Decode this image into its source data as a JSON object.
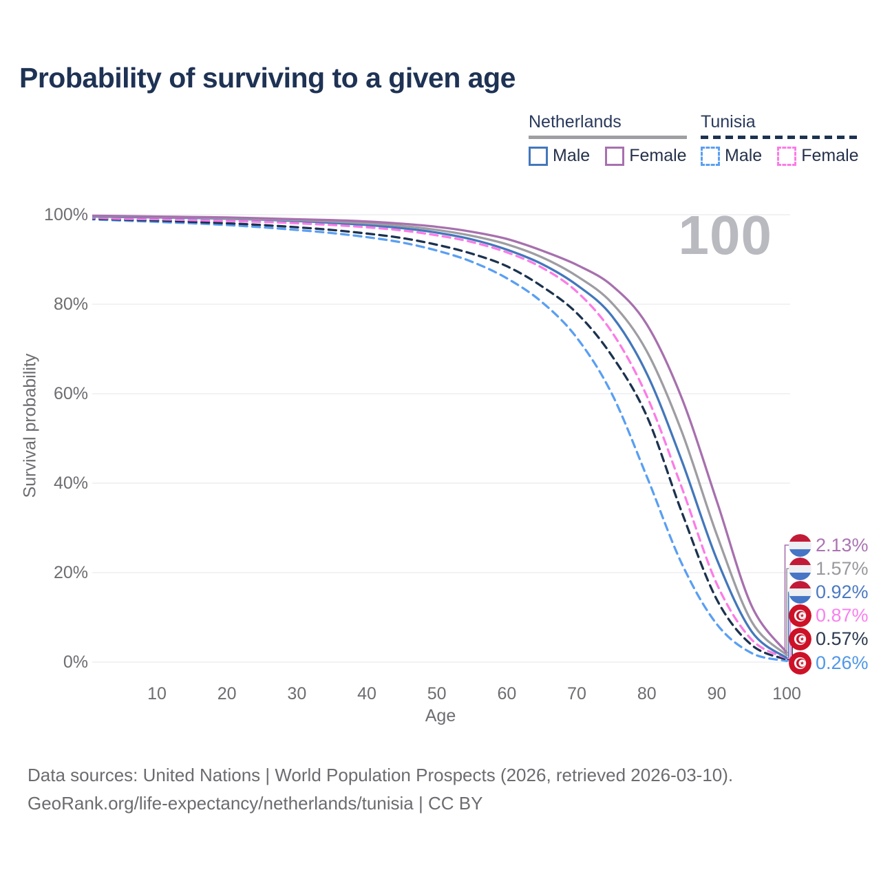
{
  "title": "Probability of surviving to a given age",
  "watermark": "100",
  "legend": {
    "netherlands": {
      "name": "Netherlands",
      "male": "Male",
      "female": "Female",
      "bar_color": "#9e9ea3",
      "bar_style": "solid"
    },
    "tunisia": {
      "name": "Tunisia",
      "male": "Male",
      "female": "Female",
      "bar_color": "#1c324f",
      "bar_style": "dashed"
    }
  },
  "chart_data": {
    "type": "line",
    "title": "Probability of surviving to a given age",
    "xlabel": "Age",
    "ylabel": "Survival probability",
    "xlim": [
      0,
      100
    ],
    "ylim": [
      0,
      100
    ],
    "grid": "horizontal",
    "legend_position": "top-right",
    "x_ticks": [
      {
        "v": 10,
        "label": "10"
      },
      {
        "v": 20,
        "label": "20"
      },
      {
        "v": 30,
        "label": "30"
      },
      {
        "v": 40,
        "label": "40"
      },
      {
        "v": 50,
        "label": "50"
      },
      {
        "v": 60,
        "label": "60"
      },
      {
        "v": 70,
        "label": "70"
      },
      {
        "v": 80,
        "label": "80"
      },
      {
        "v": 90,
        "label": "90"
      },
      {
        "v": 100,
        "label": "100"
      }
    ],
    "y_ticks": [
      {
        "v": 0,
        "label": "0%"
      },
      {
        "v": 20,
        "label": "20%"
      },
      {
        "v": 40,
        "label": "40%"
      },
      {
        "v": 60,
        "label": "60%"
      },
      {
        "v": 80,
        "label": "80%"
      },
      {
        "v": 100,
        "label": "100%"
      }
    ],
    "ages": [
      0,
      5,
      10,
      15,
      20,
      25,
      30,
      35,
      40,
      45,
      50,
      55,
      60,
      65,
      70,
      75,
      80,
      85,
      90,
      95,
      100
    ],
    "series": [
      {
        "key": "netherlands-female",
        "name": "Netherlands Female",
        "country": "Netherlands",
        "sex": "Female",
        "flag": "netherlands",
        "dash": "solid",
        "color": "#a770ae",
        "label_color": "#ab74b3",
        "end_label": "2.13%",
        "values": [
          99.8,
          99.7,
          99.6,
          99.5,
          99.4,
          99.2,
          99.0,
          98.8,
          98.5,
          98.0,
          97.3,
          96.2,
          94.6,
          92.0,
          88.8,
          84.2,
          75.5,
          59.0,
          36.0,
          12.5,
          2.13
        ]
      },
      {
        "key": "netherlands-both",
        "name": "Netherlands Both sexes",
        "country": "Netherlands",
        "sex": "Both",
        "flag": "netherlands",
        "dash": "solid",
        "color": "#9d9da2",
        "label_color": "#98989e",
        "end_label": "1.57%",
        "values": [
          99.7,
          99.6,
          99.5,
          99.4,
          99.2,
          99.0,
          98.8,
          98.5,
          98.1,
          97.5,
          96.6,
          95.3,
          93.4,
          90.5,
          86.3,
          80.3,
          69.5,
          51.5,
          28.5,
          9.0,
          1.57
        ]
      },
      {
        "key": "netherlands-male",
        "name": "Netherlands Male",
        "country": "Netherlands",
        "sex": "Male",
        "flag": "netherlands",
        "dash": "solid",
        "color": "#4377bb",
        "label_color": "#4b79c2",
        "end_label": "0.92%",
        "values": [
          99.6,
          99.5,
          99.4,
          99.3,
          99.1,
          98.9,
          98.6,
          98.2,
          97.7,
          97.0,
          96.0,
          94.5,
          92.2,
          89.0,
          84.3,
          77.4,
          64.5,
          45.0,
          23.0,
          6.8,
          0.92
        ]
      },
      {
        "key": "tunisia-female",
        "name": "Tunisia Female",
        "country": "Tunisia",
        "sex": "Female",
        "flag": "tunisia",
        "dash": "dashed",
        "color": "#fb7ce6",
        "label_color": "#f980ef",
        "end_label": "0.87%",
        "values": [
          99.4,
          99.1,
          99.0,
          98.8,
          98.6,
          98.4,
          98.1,
          97.7,
          97.2,
          96.5,
          95.4,
          93.9,
          91.6,
          88.2,
          82.8,
          73.8,
          59.5,
          39.0,
          17.5,
          5.0,
          0.87
        ]
      },
      {
        "key": "tunisia-both",
        "name": "Tunisia Both sexes",
        "country": "Tunisia",
        "sex": "Both",
        "flag": "tunisia",
        "dash": "dashed",
        "color": "#1c324f",
        "label_color": "#2b3950",
        "end_label": "0.57%",
        "values": [
          99.2,
          98.9,
          98.7,
          98.4,
          98.1,
          97.7,
          97.2,
          96.6,
          95.8,
          94.8,
          93.3,
          91.3,
          88.5,
          84.0,
          78.0,
          68.5,
          55.0,
          33.5,
          14.0,
          3.8,
          0.57
        ]
      },
      {
        "key": "tunisia-male",
        "name": "Tunisia Male",
        "country": "Tunisia",
        "sex": "Male",
        "flag": "tunisia",
        "dash": "dashed",
        "color": "#5a9ff2",
        "label_color": "#4f97e8",
        "end_label": "0.26%",
        "values": [
          99.0,
          98.7,
          98.4,
          98.1,
          97.7,
          97.2,
          96.6,
          95.9,
          95.0,
          93.8,
          92.0,
          89.5,
          85.8,
          80.5,
          72.5,
          60.0,
          41.5,
          22.0,
          8.5,
          2.0,
          0.26
        ]
      }
    ],
    "flag_colors": {
      "netherlands": {
        "red": "#c21b37",
        "white": "#edeff2",
        "blue": "#4675c6"
      },
      "tunisia": {
        "red": "#cd1126",
        "white": "#f4f6f8"
      }
    }
  },
  "footer": {
    "line1": "Data sources: United Nations | World Population Prospects (2026, retrieved 2026-03-10).",
    "line2": "GeoRank.org/life-expectancy/netherlands/tunisia | CC BY"
  }
}
